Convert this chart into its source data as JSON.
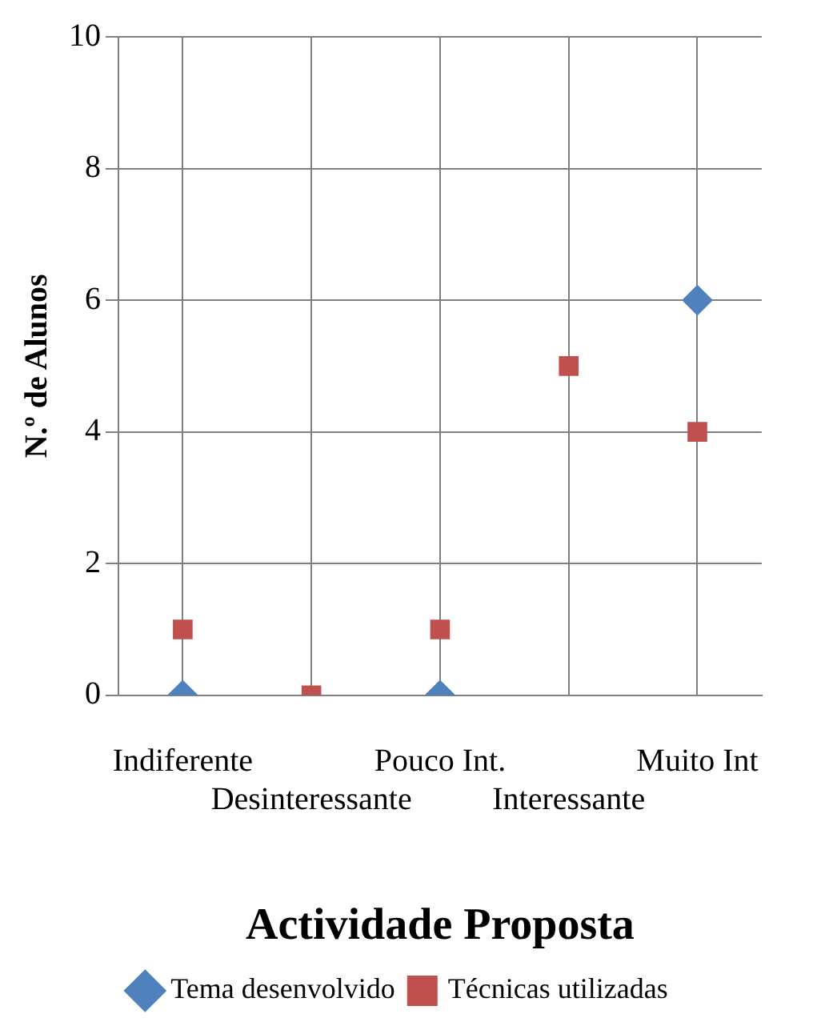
{
  "chart_data": {
    "type": "scatter",
    "xlabel": "Actividade Proposta",
    "ylabel": "N.º de Alunos",
    "categories": [
      "Indiferente",
      "Desinteressante",
      "Pouco Int.",
      "Interessante",
      "Muito Int"
    ],
    "series": [
      {
        "name": "Tema desenvolvido",
        "color": "#4f81bd",
        "marker": "diamond",
        "values": [
          0,
          null,
          0,
          null,
          6
        ]
      },
      {
        "name": "Técnicas utilizadas",
        "color": "#c0504d",
        "marker": "square",
        "values": [
          1,
          0,
          1,
          5,
          4
        ]
      }
    ],
    "ylim": [
      0,
      10
    ],
    "yticks": [
      0,
      2,
      4,
      6,
      8,
      10
    ],
    "grid": true,
    "legend": "bottom"
  }
}
